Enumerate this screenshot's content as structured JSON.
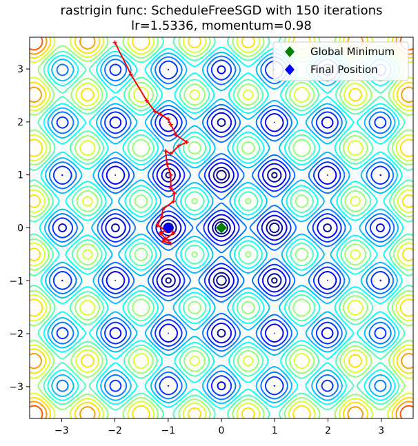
{
  "chart_data": {
    "type": "contour",
    "title": "rastrigin func: ScheduleFreeSGD with 150 iterations",
    "subtitle": "lr=1.5336, momentum=0.98",
    "xlabel": "",
    "ylabel": "",
    "xlim": [
      -3.6,
      3.6
    ],
    "ylim": [
      -3.6,
      3.6
    ],
    "xticks": [
      -3,
      -2,
      -1,
      0,
      1,
      2,
      3
    ],
    "yticks": [
      -3,
      -2,
      -1,
      0,
      1,
      2,
      3
    ],
    "xtick_labels": [
      "−3",
      "−2",
      "−1",
      "0",
      "1",
      "2",
      "3"
    ],
    "ytick_labels": [
      "−3",
      "−2",
      "−1",
      "0",
      "1",
      "2",
      "3"
    ],
    "grid": false,
    "legend_position": "top-right",
    "colormap": "jet",
    "contour_levels": [
      2.5,
      5,
      10,
      15,
      20,
      25,
      30,
      35,
      40,
      45,
      50,
      55,
      60,
      65,
      70,
      75
    ],
    "function": "rastrigin",
    "global_minimum": {
      "label": "Global Minimum",
      "x": 0.0,
      "y": 0.0,
      "color": "#008000",
      "marker": "diamond"
    },
    "final_position": {
      "label": "Final Position",
      "x": -1.0,
      "y": 0.0,
      "color": "#0000ff",
      "marker": "diamond"
    },
    "trajectory": {
      "color": "#ff0000",
      "points": [
        [
          -2.0,
          3.5
        ],
        [
          -1.7,
          2.9
        ],
        [
          -1.4,
          2.4
        ],
        [
          -1.25,
          2.2
        ],
        [
          -1.15,
          2.15
        ],
        [
          -1.0,
          2.05
        ],
        [
          -0.95,
          1.95
        ],
        [
          -0.85,
          1.75
        ],
        [
          -0.65,
          1.62
        ],
        [
          -0.8,
          1.55
        ],
        [
          -0.95,
          1.4
        ],
        [
          -1.05,
          1.45
        ],
        [
          -1.02,
          1.2
        ],
        [
          -0.95,
          1.0
        ],
        [
          -0.95,
          0.75
        ],
        [
          -0.88,
          0.65
        ],
        [
          -0.9,
          0.5
        ],
        [
          -1.1,
          0.35
        ],
        [
          -1.12,
          0.2
        ],
        [
          -1.2,
          0.05
        ],
        [
          -1.05,
          -0.05
        ],
        [
          -1.15,
          -0.1
        ],
        [
          -1.05,
          -0.2
        ],
        [
          -0.95,
          -0.3
        ],
        [
          -1.1,
          -0.25
        ],
        [
          -0.9,
          -0.1
        ],
        [
          -1.0,
          0.0
        ]
      ]
    }
  }
}
